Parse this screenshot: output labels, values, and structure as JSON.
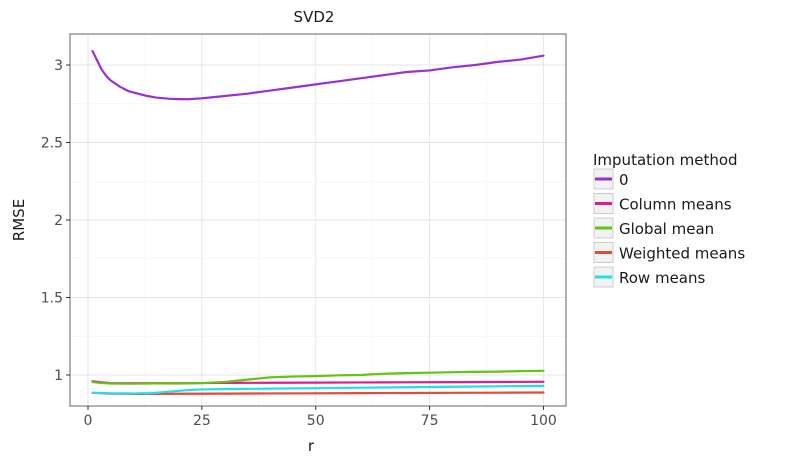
{
  "chart_data": {
    "type": "line",
    "title": "SVD2",
    "xlabel": "r",
    "ylabel": "RMSE",
    "xlim": [
      -3.95,
      104.95
    ],
    "ylim": [
      0.8,
      3.2
    ],
    "xticks": [
      0,
      25,
      50,
      75,
      100
    ],
    "xtick_labels": [
      "0",
      "25",
      "50",
      "75",
      "100"
    ],
    "yticks": [
      1,
      1.5,
      2,
      2.5,
      3
    ],
    "ytick_labels": [
      "1",
      "1.5",
      "2",
      "2.5",
      "3"
    ],
    "grid": true,
    "legend_title": "Imputation method",
    "legend_position": "right",
    "series": [
      {
        "name": "0",
        "color": "#9932cc",
        "points": [
          [
            1,
            3.09
          ],
          [
            2,
            3.03
          ],
          [
            3,
            2.97
          ],
          [
            4,
            2.93
          ],
          [
            5,
            2.9
          ],
          [
            7,
            2.86
          ],
          [
            9,
            2.83
          ],
          [
            11,
            2.815
          ],
          [
            13,
            2.8
          ],
          [
            15,
            2.79
          ],
          [
            18,
            2.782
          ],
          [
            20,
            2.78
          ],
          [
            22,
            2.779
          ],
          [
            25,
            2.785
          ],
          [
            30,
            2.8
          ],
          [
            35,
            2.815
          ],
          [
            40,
            2.835
          ],
          [
            45,
            2.855
          ],
          [
            50,
            2.875
          ],
          [
            55,
            2.895
          ],
          [
            60,
            2.915
          ],
          [
            65,
            2.935
          ],
          [
            70,
            2.955
          ],
          [
            75,
            2.965
          ],
          [
            80,
            2.985
          ],
          [
            85,
            3.0
          ],
          [
            90,
            3.02
          ],
          [
            95,
            3.035
          ],
          [
            100,
            3.06
          ]
        ]
      },
      {
        "name": "Column means",
        "color": "#e31a8c",
        "points": [
          [
            1,
            0.96
          ],
          [
            3,
            0.953
          ],
          [
            5,
            0.948
          ],
          [
            10,
            0.947
          ],
          [
            15,
            0.947
          ],
          [
            20,
            0.947
          ],
          [
            25,
            0.948
          ],
          [
            30,
            0.949
          ],
          [
            40,
            0.95
          ],
          [
            50,
            0.951
          ],
          [
            60,
            0.952
          ],
          [
            70,
            0.953
          ],
          [
            80,
            0.954
          ],
          [
            90,
            0.955
          ],
          [
            100,
            0.956
          ]
        ]
      },
      {
        "name": "Global mean",
        "color": "#66c219",
        "points": [
          [
            1,
            0.955
          ],
          [
            3,
            0.948
          ],
          [
            5,
            0.945
          ],
          [
            10,
            0.944
          ],
          [
            15,
            0.946
          ],
          [
            20,
            0.945
          ],
          [
            25,
            0.948
          ],
          [
            30,
            0.955
          ],
          [
            35,
            0.97
          ],
          [
            40,
            0.985
          ],
          [
            45,
            0.99
          ],
          [
            50,
            0.993
          ],
          [
            55,
            0.998
          ],
          [
            60,
            1.0
          ],
          [
            62,
            1.004
          ],
          [
            65,
            1.008
          ],
          [
            70,
            1.012
          ],
          [
            75,
            1.015
          ],
          [
            80,
            1.018
          ],
          [
            85,
            1.02
          ],
          [
            90,
            1.022
          ],
          [
            95,
            1.025
          ],
          [
            100,
            1.027
          ]
        ]
      },
      {
        "name": "Weighted means",
        "color": "#e8483c",
        "points": [
          [
            1,
            0.885
          ],
          [
            5,
            0.88
          ],
          [
            10,
            0.878
          ],
          [
            15,
            0.878
          ],
          [
            20,
            0.879
          ],
          [
            30,
            0.88
          ],
          [
            40,
            0.881
          ],
          [
            50,
            0.882
          ],
          [
            60,
            0.883
          ],
          [
            70,
            0.884
          ],
          [
            80,
            0.885
          ],
          [
            90,
            0.886
          ],
          [
            100,
            0.887
          ]
        ]
      },
      {
        "name": "Row means",
        "color": "#1ee0e8",
        "points": [
          [
            1,
            0.885
          ],
          [
            5,
            0.882
          ],
          [
            10,
            0.881
          ],
          [
            14,
            0.883
          ],
          [
            18,
            0.893
          ],
          [
            22,
            0.903
          ],
          [
            25,
            0.907
          ],
          [
            30,
            0.909
          ],
          [
            40,
            0.912
          ],
          [
            50,
            0.915
          ],
          [
            60,
            0.918
          ],
          [
            70,
            0.921
          ],
          [
            80,
            0.924
          ],
          [
            90,
            0.927
          ],
          [
            100,
            0.93
          ]
        ]
      }
    ]
  }
}
